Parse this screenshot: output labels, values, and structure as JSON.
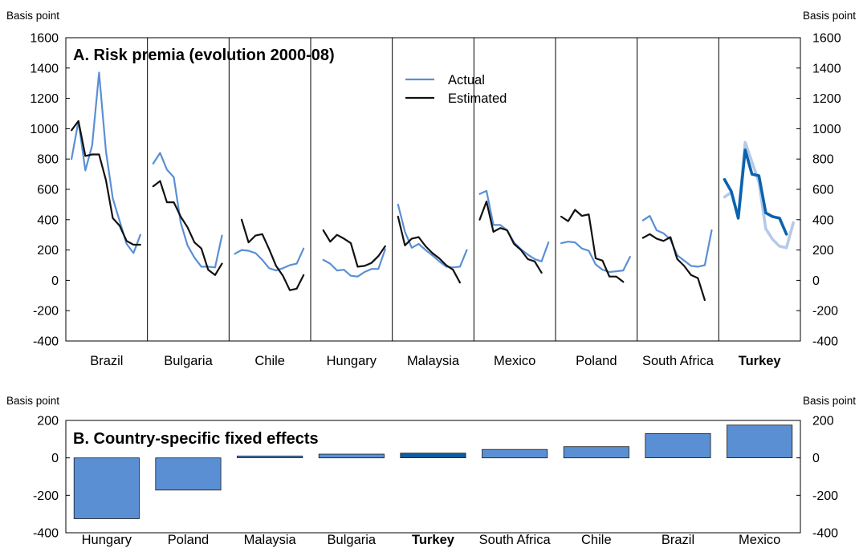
{
  "chart_data": [
    {
      "type": "line",
      "title": "A. Risk premia (evolution 2000-08)",
      "ylabel_left": "Basis point",
      "ylabel_right": "Basis point",
      "ylim": [
        -400,
        1600
      ],
      "yticks": [
        1600,
        1400,
        1200,
        1000,
        800,
        600,
        400,
        200,
        0,
        -200,
        -400
      ],
      "grid": false,
      "legend_position": "top-center",
      "categories": [
        "Brazil",
        "Bulgaria",
        "Chile",
        "Hungary",
        "Malaysia",
        "Mexico",
        "Poland",
        "South Africa",
        "Turkey"
      ],
      "highlight": "Turkey",
      "series": [
        {
          "name": "Actual",
          "color": "#5b8fd3",
          "highlight_color": "#b4cae8",
          "values": {
            "Brazil": [
              800,
              1050,
              725,
              890,
              1370,
              850,
              540,
              390,
              240,
              180,
              300
            ],
            "Bulgaria": [
              770,
              840,
              730,
              680,
              380,
              230,
              150,
              90,
              90,
              85,
              295
            ],
            "Chile": [
              175,
              200,
              195,
              180,
              135,
              80,
              65,
              80,
              100,
              110,
              210
            ],
            "Hungary": [
              null,
              135,
              110,
              65,
              70,
              30,
              25,
              55,
              75,
              75,
              205
            ],
            "Malaysia": [
              500,
              320,
              215,
              240,
              200,
              165,
              125,
              90,
              85,
              90,
              200
            ],
            "Mexico": [
              570,
              590,
              365,
              365,
              330,
              250,
              205,
              170,
              140,
              125,
              250
            ],
            "Poland": [
              245,
              255,
              250,
              210,
              195,
              105,
              70,
              55,
              60,
              65,
              155
            ],
            "South Africa": [
              395,
              425,
              330,
              310,
              270,
              165,
              130,
              95,
              90,
              100,
              330
            ],
            "Turkey": [
              550,
              580,
              420,
              910,
              780,
              650,
              340,
              270,
              225,
              215,
              380
            ]
          }
        },
        {
          "name": "Estimated",
          "color": "#111111",
          "highlight_color": "#0b62ae",
          "values": {
            "Brazil": [
              990,
              1050,
              820,
              830,
              830,
              660,
              410,
              360,
              260,
              235,
              235
            ],
            "Bulgaria": [
              620,
              655,
              515,
              515,
              420,
              350,
              250,
              210,
              70,
              35,
              110
            ],
            "Chile": [
              null,
              400,
              250,
              295,
              305,
              205,
              95,
              30,
              -65,
              -55,
              35
            ],
            "Hungary": [
              null,
              330,
              255,
              300,
              275,
              245,
              90,
              95,
              115,
              160,
              225
            ],
            "Malaysia": [
              420,
              230,
              275,
              285,
              225,
              180,
              145,
              100,
              70,
              -15,
              null
            ],
            "Mexico": [
              400,
              520,
              320,
              345,
              330,
              240,
              200,
              140,
              125,
              50,
              null
            ],
            "Poland": [
              420,
              390,
              465,
              425,
              435,
              145,
              130,
              25,
              25,
              -10,
              null
            ],
            "South Africa": [
              280,
              305,
              275,
              260,
              285,
              140,
              95,
              35,
              15,
              -130,
              null
            ],
            "Turkey": [
              665,
              585,
              410,
              860,
              700,
              690,
              445,
              420,
              410,
              305,
              null
            ]
          }
        }
      ]
    },
    {
      "type": "bar",
      "title": "B. Country-specific fixed effects",
      "ylabel_left": "Basis point",
      "ylabel_right": "Basis point",
      "ylim": [
        -400,
        200
      ],
      "yticks": [
        200,
        0,
        -200,
        -400
      ],
      "grid": false,
      "categories": [
        "Hungary",
        "Poland",
        "Malaysia",
        "Bulgaria",
        "Turkey",
        "South Africa",
        "Chile",
        "Brazil",
        "Mexico"
      ],
      "values": [
        -325,
        -172,
        10,
        20,
        25,
        45,
        60,
        130,
        175
      ],
      "highlight": "Turkey",
      "color": "#5b8fd3",
      "highlight_color": "#0b5ea8"
    }
  ]
}
